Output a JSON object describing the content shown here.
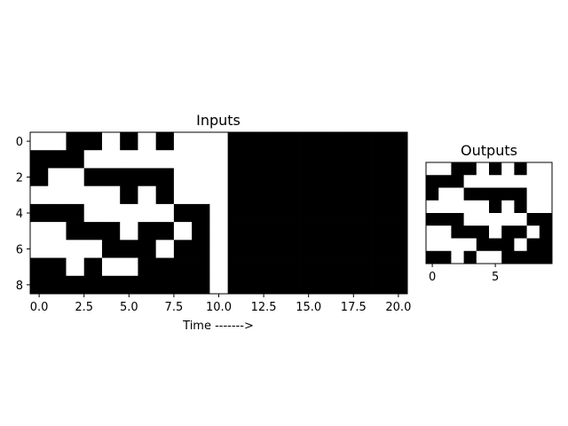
{
  "chart_data": [
    {
      "type": "heatmap",
      "title": "Inputs",
      "xlabel": "Time ------->",
      "ylabel": "",
      "colormap": {
        "0": "#ffffff",
        "1": "#000000"
      },
      "x_ticks": [
        "0.0",
        "2.5",
        "5.0",
        "7.5",
        "10.0",
        "12.5",
        "15.0",
        "17.5",
        "20.0"
      ],
      "x_tick_values": [
        0,
        2.5,
        5,
        7.5,
        10,
        12.5,
        15,
        17.5,
        20
      ],
      "y_ticks": [
        "0",
        "2",
        "4",
        "6",
        "8"
      ],
      "y_tick_values": [
        0,
        2,
        4,
        6,
        8
      ],
      "xlim": [
        -0.5,
        20.5
      ],
      "ylim": [
        8.5,
        -0.5
      ],
      "rows": [
        [
          0,
          0,
          1,
          1,
          0,
          1,
          0,
          1,
          0,
          0,
          0,
          1,
          1,
          1,
          1,
          1,
          1,
          1,
          1,
          1,
          1
        ],
        [
          1,
          1,
          1,
          0,
          0,
          0,
          0,
          0,
          0,
          0,
          0,
          1,
          1,
          1,
          1,
          1,
          1,
          1,
          1,
          1,
          1
        ],
        [
          1,
          0,
          0,
          1,
          1,
          1,
          1,
          1,
          0,
          0,
          0,
          1,
          1,
          1,
          1,
          1,
          1,
          1,
          1,
          1,
          1
        ],
        [
          0,
          0,
          0,
          0,
          0,
          1,
          0,
          1,
          0,
          0,
          0,
          1,
          1,
          1,
          1,
          1,
          1,
          1,
          1,
          1,
          1
        ],
        [
          1,
          1,
          1,
          0,
          0,
          0,
          0,
          0,
          1,
          1,
          0,
          1,
          1,
          1,
          1,
          1,
          1,
          1,
          1,
          1,
          1
        ],
        [
          0,
          0,
          1,
          1,
          1,
          0,
          1,
          1,
          0,
          1,
          0,
          1,
          1,
          1,
          1,
          1,
          1,
          1,
          1,
          1,
          1
        ],
        [
          0,
          0,
          0,
          0,
          1,
          1,
          1,
          0,
          1,
          1,
          0,
          1,
          1,
          1,
          1,
          1,
          1,
          1,
          1,
          1,
          1
        ],
        [
          1,
          1,
          0,
          1,
          0,
          0,
          1,
          1,
          1,
          1,
          0,
          1,
          1,
          1,
          1,
          1,
          1,
          1,
          1,
          1,
          1
        ],
        [
          1,
          1,
          1,
          1,
          1,
          1,
          1,
          1,
          1,
          1,
          0,
          1,
          1,
          1,
          1,
          1,
          1,
          1,
          1,
          1,
          1
        ]
      ]
    },
    {
      "type": "heatmap",
      "title": "Outputs",
      "xlabel": "",
      "ylabel": "",
      "colormap": {
        "0": "#ffffff",
        "1": "#000000"
      },
      "x_ticks": [
        "0",
        "5"
      ],
      "x_tick_values": [
        0,
        5
      ],
      "y_ticks": [],
      "y_tick_values": [],
      "xlim": [
        -0.5,
        9.5
      ],
      "ylim": [
        8.5,
        -0.5
      ],
      "rows": [
        [
          0,
          0,
          1,
          1,
          0,
          1,
          0,
          1,
          0,
          0
        ],
        [
          1,
          1,
          1,
          0,
          0,
          0,
          0,
          0,
          0,
          0
        ],
        [
          1,
          0,
          0,
          1,
          1,
          1,
          1,
          1,
          0,
          0
        ],
        [
          0,
          0,
          0,
          0,
          0,
          1,
          0,
          1,
          0,
          0
        ],
        [
          1,
          1,
          1,
          0,
          0,
          0,
          0,
          0,
          1,
          1
        ],
        [
          0,
          0,
          1,
          1,
          1,
          0,
          1,
          1,
          0,
          1
        ],
        [
          0,
          0,
          0,
          0,
          1,
          1,
          1,
          0,
          1,
          1
        ],
        [
          1,
          1,
          0,
          1,
          0,
          0,
          1,
          1,
          1,
          1
        ]
      ]
    }
  ]
}
